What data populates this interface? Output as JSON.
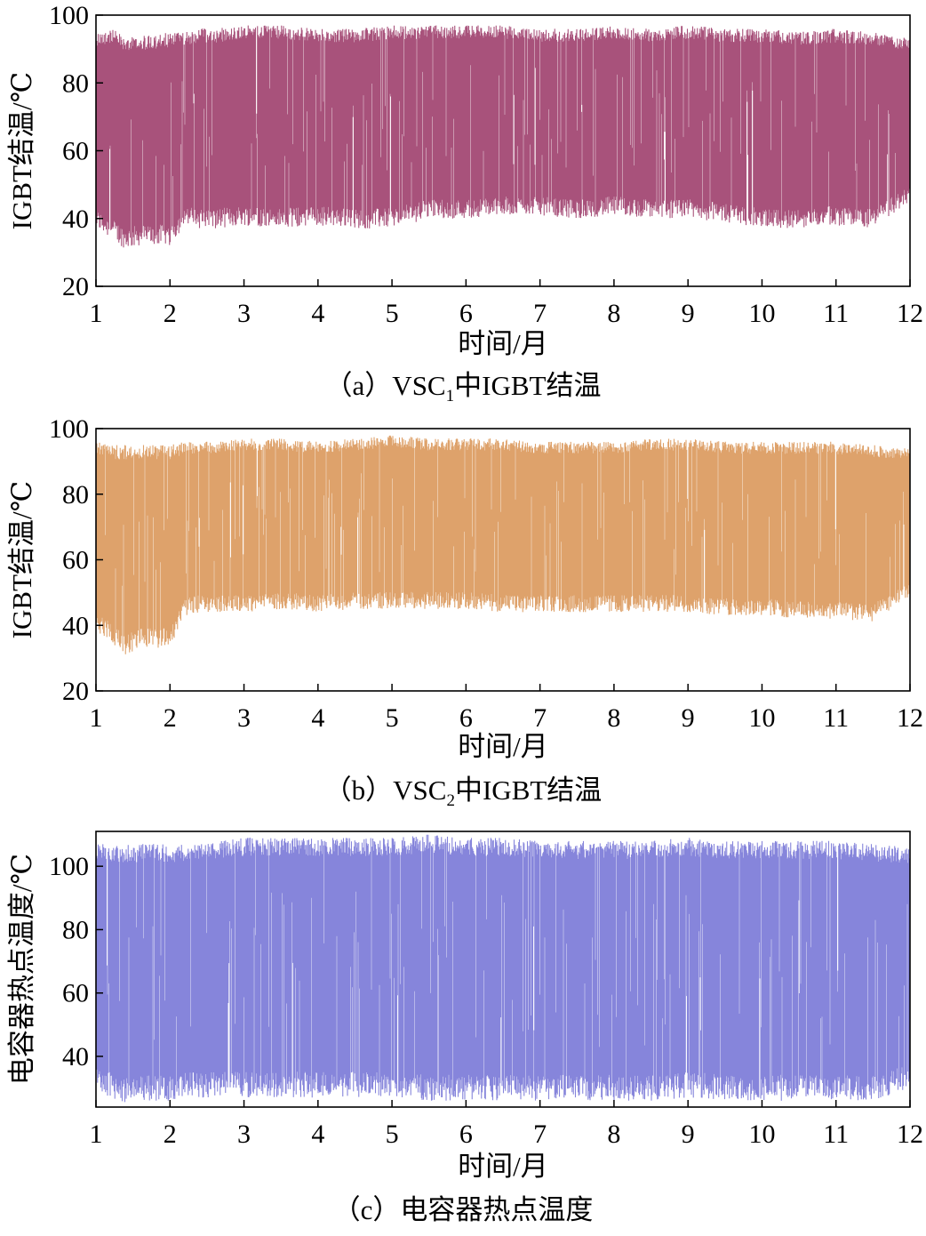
{
  "chart_data": [
    {
      "type": "area",
      "caption": {
        "prefix": "（a）VSC",
        "sub": "1",
        "suffix": "中IGBT结温"
      },
      "xlabel": "时间/月",
      "ylabel": "IGBT结温/℃",
      "xlim": [
        1,
        12
      ],
      "ylim": [
        20,
        100
      ],
      "xticks": [
        1,
        2,
        3,
        4,
        5,
        6,
        7,
        8,
        9,
        10,
        11,
        12
      ],
      "yticks": [
        20,
        40,
        60,
        80,
        100
      ],
      "color": "#a8527b",
      "x": [
        1.0,
        1.2,
        1.4,
        1.6,
        1.8,
        2.0,
        2.2,
        2.4,
        2.6,
        3.0,
        3.5,
        4.0,
        4.5,
        5.0,
        5.5,
        6.0,
        6.5,
        7.0,
        7.5,
        8.0,
        8.5,
        9.0,
        9.5,
        10.0,
        10.5,
        11.0,
        11.5,
        12.0
      ],
      "upper": [
        95,
        96,
        94,
        94,
        94,
        95,
        95,
        96,
        96,
        97,
        97,
        96,
        96,
        97,
        97,
        97,
        97,
        96,
        96,
        97,
        96,
        97,
        96,
        96,
        95,
        96,
        95,
        93
      ],
      "lower": [
        37,
        34,
        31,
        32,
        32,
        32,
        38,
        37,
        37,
        38,
        37,
        38,
        37,
        37,
        40,
        40,
        41,
        41,
        40,
        41,
        40,
        40,
        39,
        37,
        37,
        38,
        37,
        45
      ]
    },
    {
      "type": "area",
      "caption": {
        "prefix": "（b）VSC",
        "sub": "2",
        "suffix": "中IGBT结温"
      },
      "xlabel": "时间/月",
      "ylabel": "IGBT结温/℃",
      "xlim": [
        1,
        12
      ],
      "ylim": [
        20,
        100
      ],
      "xticks": [
        1,
        2,
        3,
        4,
        5,
        6,
        7,
        8,
        9,
        10,
        11,
        12
      ],
      "yticks": [
        20,
        40,
        60,
        80,
        100
      ],
      "color": "#dea26b",
      "x": [
        1.0,
        1.2,
        1.4,
        1.6,
        1.8,
        2.0,
        2.2,
        2.4,
        2.6,
        3.0,
        3.5,
        4.0,
        4.5,
        5.0,
        5.5,
        6.0,
        6.5,
        7.0,
        7.5,
        8.0,
        8.5,
        9.0,
        9.5,
        10.0,
        10.5,
        11.0,
        11.5,
        12.0
      ],
      "upper": [
        96,
        95,
        95,
        95,
        95,
        95,
        96,
        96,
        96,
        97,
        97,
        96,
        97,
        98,
        97,
        97,
        97,
        96,
        96,
        96,
        97,
        97,
        96,
        96,
        96,
        96,
        95,
        94
      ],
      "lower": [
        38,
        35,
        31,
        33,
        33,
        33,
        43,
        44,
        44,
        44,
        45,
        44,
        45,
        45,
        45,
        45,
        44,
        44,
        44,
        44,
        44,
        44,
        43,
        43,
        42,
        42,
        41,
        49
      ]
    },
    {
      "type": "area",
      "caption": {
        "prefix": "（c）电容器热点温度",
        "sub": "",
        "suffix": ""
      },
      "xlabel": "时间/月",
      "ylabel": "电容器热点温度/℃",
      "xlim": [
        1,
        12
      ],
      "ylim": [
        24,
        111
      ],
      "xticks": [
        1,
        2,
        3,
        4,
        5,
        6,
        7,
        8,
        9,
        10,
        11,
        12
      ],
      "yticks": [
        40,
        60,
        80,
        100
      ],
      "color": "#8685db",
      "x": [
        1.0,
        1.2,
        1.4,
        1.6,
        1.8,
        2.0,
        2.2,
        2.4,
        2.6,
        3.0,
        3.5,
        4.0,
        4.5,
        5.0,
        5.5,
        6.0,
        6.5,
        7.0,
        7.5,
        8.0,
        8.5,
        9.0,
        9.5,
        10.0,
        10.5,
        11.0,
        11.5,
        12.0
      ],
      "upper": [
        108,
        107,
        107,
        107,
        107,
        107,
        107,
        108,
        108,
        109,
        109,
        109,
        109,
        109,
        110,
        109,
        109,
        108,
        108,
        108,
        108,
        109,
        108,
        108,
        108,
        108,
        107,
        106
      ],
      "lower": [
        28,
        27,
        25,
        26,
        26,
        26,
        27,
        27,
        27,
        27,
        27,
        27,
        27,
        27,
        26,
        26,
        26,
        26,
        26,
        26,
        26,
        27,
        26,
        26,
        26,
        26,
        26,
        30
      ]
    }
  ]
}
